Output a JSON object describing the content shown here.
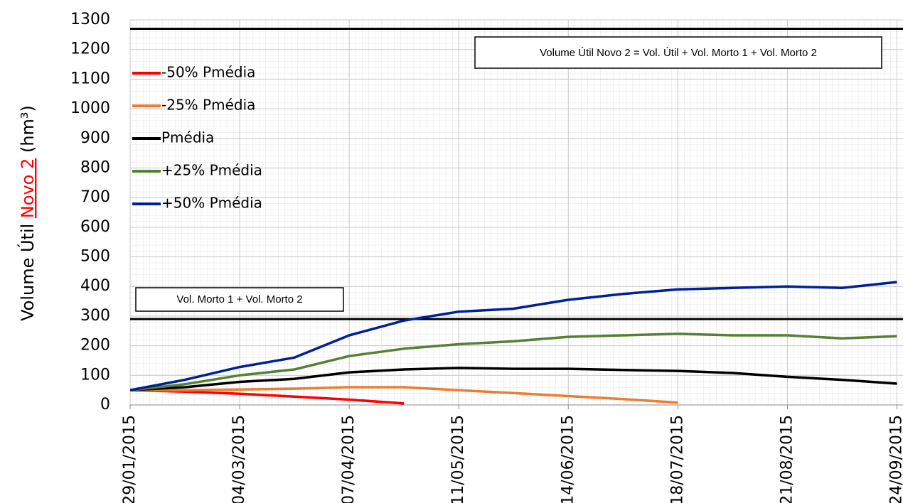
{
  "chart_data": {
    "type": "line",
    "ylabel": [
      "Volume Útil ",
      "Novo 2",
      " (hm³)"
    ],
    "x": [
      "29/01/2015",
      "15/02/2015",
      "04/03/2015",
      "21/03/2015",
      "07/04/2015",
      "24/04/2015",
      "11/05/2015",
      "28/05/2015",
      "14/06/2015",
      "01/07/2015",
      "18/07/2015",
      "04/08/2015",
      "21/08/2015",
      "07/09/2015",
      "24/09/2015"
    ],
    "xlim": [
      "29/01/2015",
      "25/09/2015"
    ],
    "xticks": [
      "29/01/2015",
      "04/03/2015",
      "07/04/2015",
      "11/05/2015",
      "14/06/2015",
      "18/07/2015",
      "21/08/2015",
      "24/09/2015"
    ],
    "ylim": [
      0,
      1300
    ],
    "yticks": [
      0,
      100,
      200,
      300,
      400,
      500,
      600,
      700,
      800,
      900,
      1000,
      1100,
      1200,
      1300
    ],
    "grid": true,
    "legend": "upper left",
    "series": [
      {
        "name": "-50% Pmédia",
        "color": "#ff0000",
        "values": [
          50,
          45,
          38,
          28,
          18,
          5,
          null,
          null,
          null,
          null,
          null,
          null,
          null,
          null,
          null
        ]
      },
      {
        "name": "-25% Pmédia",
        "color": "#ed7d31",
        "values": [
          50,
          50,
          52,
          55,
          60,
          60,
          50,
          40,
          30,
          20,
          8,
          null,
          null,
          null,
          null
        ]
      },
      {
        "name": "Pmédia",
        "color": "#000000",
        "values": [
          50,
          60,
          78,
          88,
          110,
          120,
          125,
          122,
          122,
          118,
          115,
          108,
          95,
          85,
          72
        ]
      },
      {
        "name": "+25% Pmédia",
        "color": "#548235",
        "values": [
          50,
          70,
          100,
          120,
          165,
          190,
          205,
          215,
          230,
          235,
          240,
          235,
          235,
          225,
          232
        ]
      },
      {
        "name": "+50% Pmédia",
        "color": "#002099",
        "values": [
          50,
          85,
          128,
          160,
          235,
          285,
          315,
          325,
          355,
          375,
          390,
          395,
          400,
          395,
          415
        ]
      }
    ],
    "reference_lines": [
      {
        "value": 1270,
        "color": "#000000"
      },
      {
        "value": 290,
        "color": "#000000"
      }
    ],
    "annotations": [
      "Volume Útil Novo 2 = Vol. Útil + Vol. Morto 1 + Vol. Morto 2",
      "Vol. Morto 1 + Vol. Morto 2"
    ]
  }
}
